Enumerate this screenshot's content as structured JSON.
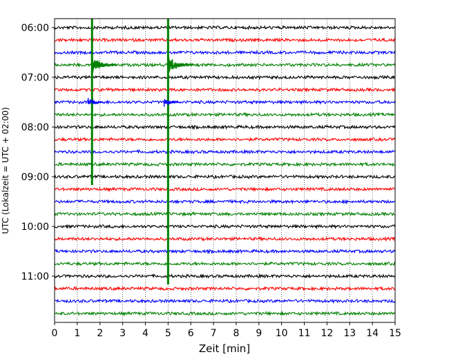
{
  "chart_data": {
    "type": "line",
    "subtype": "seismogram-helicorder",
    "xlabel": "Zeit  [min]",
    "ylabel": "UTC (Lokalzeit = UTC + 02:00)",
    "xlim": [
      0,
      15
    ],
    "x_ticks": [
      0,
      1,
      2,
      3,
      4,
      5,
      6,
      7,
      8,
      9,
      10,
      11,
      12,
      13,
      14,
      15
    ],
    "y_tick_labels": [
      "06:00",
      "07:00",
      "08:00",
      "09:00",
      "10:00",
      "11:00"
    ],
    "trace_start": "06:00",
    "trace_interval_min": 15,
    "trace_count": 24,
    "trace_colors": [
      "#000000",
      "#ff0000",
      "#0000ff",
      "#008000"
    ],
    "vertical_grid": "dotted",
    "events": [
      {
        "time_min": 1.65,
        "trace_start": "06:45",
        "extends_through": "09:00"
      },
      {
        "time_min": 5.0,
        "trace_start": "06:45",
        "extends_through": "11:00"
      }
    ]
  }
}
